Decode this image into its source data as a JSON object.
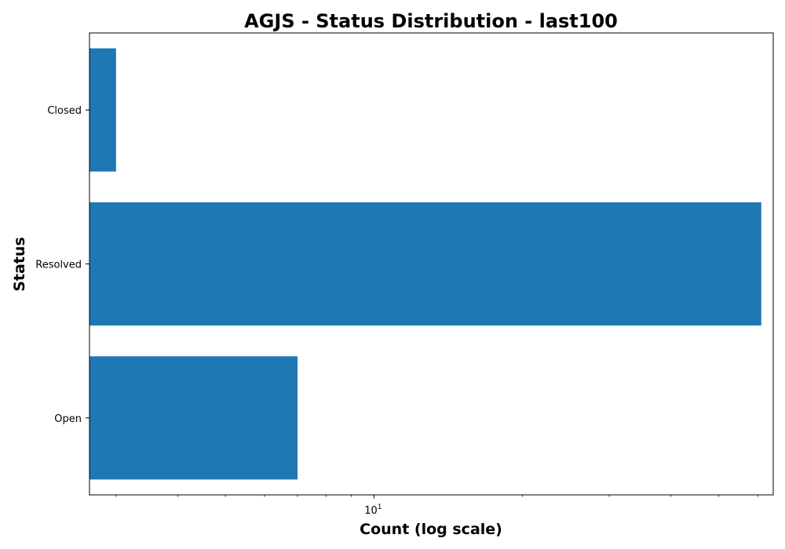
{
  "chart_data": {
    "type": "bar",
    "orientation": "horizontal",
    "title": "AGJS - Status Distribution - last100",
    "xlabel": "Count (log scale)",
    "ylabel": "Status",
    "xscale": "log",
    "xlim": [
      2.65,
      64.5
    ],
    "categories": [
      "Closed",
      "Resolved",
      "Open"
    ],
    "values": [
      3,
      61,
      7
    ],
    "x_major_ticks": [
      {
        "base": "10",
        "exponent": "1",
        "value": 10
      }
    ],
    "x_minor_ticks": [
      3,
      4,
      5,
      6,
      7,
      8,
      9,
      20,
      30,
      40,
      50,
      60
    ],
    "bar_color": "#1f77b4",
    "grid": false,
    "legend": false
  }
}
